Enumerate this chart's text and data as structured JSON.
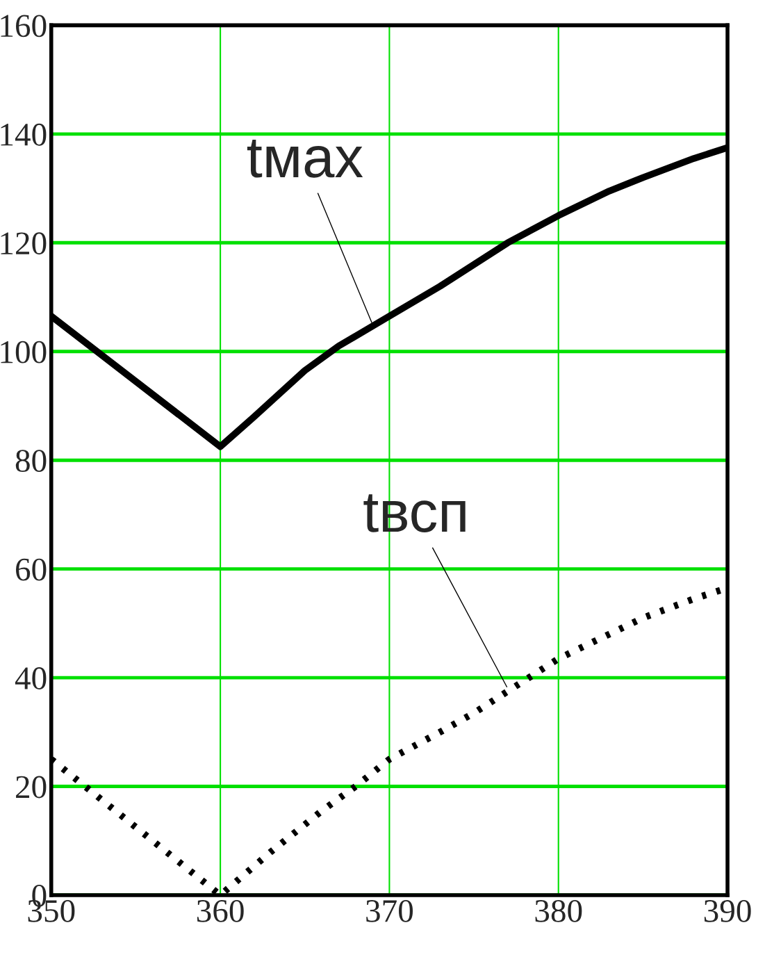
{
  "chart_data": {
    "type": "line",
    "xlim": [
      350,
      390
    ],
    "ylim": [
      0,
      160
    ],
    "xticks": [
      350,
      360,
      370,
      380,
      390
    ],
    "yticks": [
      0,
      20,
      40,
      60,
      80,
      100,
      120,
      140,
      160
    ],
    "grid": true,
    "series": [
      {
        "color": "#000000",
        "line_style": "solid",
        "x": [
          350,
          360,
          362,
          365,
          367,
          370,
          373,
          375,
          377,
          380,
          383,
          385,
          388,
          390
        ],
        "values": [
          106.5,
          82.5,
          88,
          96.5,
          101,
          106.5,
          112,
          116,
          120,
          125,
          129.5,
          132,
          135.5,
          137.5
        ]
      },
      {
        "color": "#000000",
        "line_style": "dotted",
        "x": [
          350,
          360,
          363,
          366,
          368,
          370,
          373,
          375,
          378,
          380,
          383,
          385,
          388,
          390
        ],
        "values": [
          25,
          0,
          8,
          15.5,
          20,
          25,
          30,
          33.5,
          39.5,
          43.5,
          48,
          51,
          54.5,
          56.5
        ]
      }
    ],
    "annotations": [
      {
        "text": "tмах",
        "x": 369,
        "y": 105
      },
      {
        "text": "tвсп",
        "x": 377,
        "y": 38
      }
    ]
  }
}
